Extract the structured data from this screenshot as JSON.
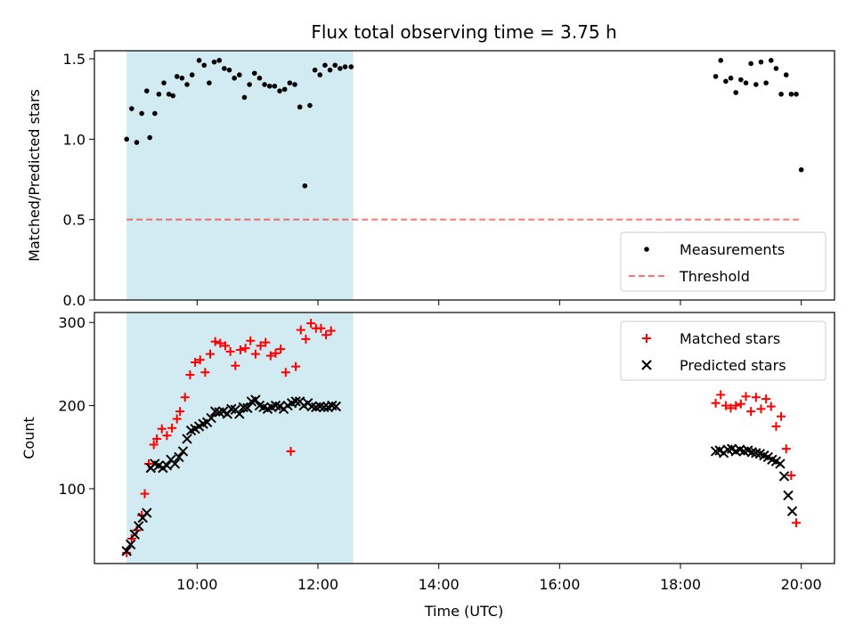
{
  "chart_data": {
    "type": "scatter",
    "title": "Flux total observing time = 3.75 h",
    "xlabel": "Time (UTC)",
    "x_ticks": [
      "10:00",
      "12:00",
      "14:00",
      "16:00",
      "18:00",
      "20:00"
    ],
    "shaded_interval": [
      "08:50",
      "12:35"
    ],
    "colors": {
      "shade": "#add8e6",
      "measurement": "#000000",
      "threshold": "#ff0000",
      "matched": "#ff0000",
      "predicted": "#000000"
    },
    "panels": [
      {
        "ylabel": "Matched/Predicted stars",
        "ylim": [
          0,
          1.55
        ],
        "y_ticks": [
          "0.0",
          "0.5",
          "1.0",
          "1.5"
        ],
        "legend_location": "lower right",
        "legend": [
          {
            "label": "Measurements",
            "marker": "dot"
          },
          {
            "label": "Threshold",
            "marker": "dashed-line"
          }
        ],
        "threshold": {
          "value": 0.5,
          "x_range": [
            "08:50",
            "20:00"
          ]
        },
        "series": [
          {
            "name": "Measurements",
            "points": [
              [
                "08:50",
                1.0
              ],
              [
                "08:55",
                1.19
              ],
              [
                "09:00",
                0.98
              ],
              [
                "09:05",
                1.16
              ],
              [
                "09:10",
                1.3
              ],
              [
                "09:13",
                1.01
              ],
              [
                "09:18",
                1.16
              ],
              [
                "09:22",
                1.28
              ],
              [
                "09:27",
                1.35
              ],
              [
                "09:32",
                1.28
              ],
              [
                "09:36",
                1.27
              ],
              [
                "09:40",
                1.39
              ],
              [
                "09:45",
                1.38
              ],
              [
                "09:50",
                1.34
              ],
              [
                "09:55",
                1.4
              ],
              [
                "10:02",
                1.49
              ],
              [
                "10:07",
                1.46
              ],
              [
                "10:12",
                1.35
              ],
              [
                "10:17",
                1.48
              ],
              [
                "10:22",
                1.49
              ],
              [
                "10:27",
                1.44
              ],
              [
                "10:32",
                1.43
              ],
              [
                "10:37",
                1.38
              ],
              [
                "10:42",
                1.4
              ],
              [
                "10:47",
                1.26
              ],
              [
                "10:52",
                1.34
              ],
              [
                "10:57",
                1.41
              ],
              [
                "11:02",
                1.38
              ],
              [
                "11:07",
                1.34
              ],
              [
                "11:12",
                1.33
              ],
              [
                "11:17",
                1.33
              ],
              [
                "11:22",
                1.3
              ],
              [
                "11:27",
                1.31
              ],
              [
                "11:32",
                1.35
              ],
              [
                "11:37",
                1.34
              ],
              [
                "11:42",
                1.2
              ],
              [
                "11:47",
                0.71
              ],
              [
                "11:52",
                1.21
              ],
              [
                "11:57",
                1.43
              ],
              [
                "12:02",
                1.4
              ],
              [
                "12:07",
                1.46
              ],
              [
                "12:12",
                1.43
              ],
              [
                "12:17",
                1.46
              ],
              [
                "12:22",
                1.44
              ],
              [
                "12:27",
                1.45
              ],
              [
                "12:33",
                1.45
              ],
              [
                "18:35",
                1.39
              ],
              [
                "18:40",
                1.49
              ],
              [
                "18:45",
                1.36
              ],
              [
                "18:50",
                1.38
              ],
              [
                "18:55",
                1.29
              ],
              [
                "19:00",
                1.37
              ],
              [
                "19:05",
                1.35
              ],
              [
                "19:10",
                1.47
              ],
              [
                "19:15",
                1.34
              ],
              [
                "19:20",
                1.48
              ],
              [
                "19:25",
                1.35
              ],
              [
                "19:30",
                1.49
              ],
              [
                "19:35",
                1.44
              ],
              [
                "19:40",
                1.28
              ],
              [
                "19:45",
                1.4
              ],
              [
                "19:50",
                1.28
              ],
              [
                "19:55",
                1.28
              ],
              [
                "20:00",
                0.81
              ]
            ]
          }
        ]
      },
      {
        "ylabel": "Count",
        "ylim": [
          10,
          312
        ],
        "y_ticks": [
          "100",
          "200",
          "300"
        ],
        "legend_location": "upper right",
        "legend": [
          {
            "label": "Matched stars",
            "marker": "plus"
          },
          {
            "label": "Predicted stars",
            "marker": "x"
          }
        ],
        "series": [
          {
            "name": "Matched stars",
            "points": [
              [
                "08:50",
                23
              ],
              [
                "08:55",
                40
              ],
              [
                "09:00",
                50
              ],
              [
                "09:05",
                68
              ],
              [
                "09:08",
                94
              ],
              [
                "09:12",
                130
              ],
              [
                "09:17",
                153
              ],
              [
                "09:20",
                160
              ],
              [
                "09:25",
                172
              ],
              [
                "09:30",
                164
              ],
              [
                "09:35",
                173
              ],
              [
                "09:40",
                184
              ],
              [
                "09:43",
                193
              ],
              [
                "09:48",
                210
              ],
              [
                "09:53",
                237
              ],
              [
                "09:58",
                252
              ],
              [
                "10:03",
                255
              ],
              [
                "10:08",
                240
              ],
              [
                "10:13",
                262
              ],
              [
                "10:18",
                277
              ],
              [
                "10:23",
                275
              ],
              [
                "10:28",
                272
              ],
              [
                "10:33",
                265
              ],
              [
                "10:38",
                248
              ],
              [
                "10:43",
                267
              ],
              [
                "10:48",
                269
              ],
              [
                "10:53",
                278
              ],
              [
                "10:58",
                262
              ],
              [
                "11:03",
                272
              ],
              [
                "11:08",
                276
              ],
              [
                "11:13",
                260
              ],
              [
                "11:18",
                263
              ],
              [
                "11:23",
                268
              ],
              [
                "11:28",
                240
              ],
              [
                "11:33",
                145
              ],
              [
                "11:38",
                247
              ],
              [
                "11:43",
                291
              ],
              [
                "11:48",
                280
              ],
              [
                "11:53",
                299
              ],
              [
                "11:58",
                293
              ],
              [
                "12:03",
                293
              ],
              [
                "12:08",
                285
              ],
              [
                "12:13",
                290
              ],
              [
                "18:35",
                203
              ],
              [
                "18:40",
                213
              ],
              [
                "18:45",
                200
              ],
              [
                "18:50",
                197
              ],
              [
                "18:55",
                200
              ],
              [
                "19:00",
                202
              ],
              [
                "19:05",
                211
              ],
              [
                "19:10",
                193
              ],
              [
                "19:15",
                210
              ],
              [
                "19:20",
                196
              ],
              [
                "19:25",
                208
              ],
              [
                "19:30",
                199
              ],
              [
                "19:35",
                175
              ],
              [
                "19:40",
                187
              ],
              [
                "19:45",
                148
              ],
              [
                "19:50",
                116
              ],
              [
                "19:55",
                59
              ]
            ]
          },
          {
            "name": "Predicted stars",
            "points": [
              [
                "08:50",
                25
              ],
              [
                "08:54",
                33
              ],
              [
                "08:58",
                45
              ],
              [
                "09:02",
                55
              ],
              [
                "09:06",
                65
              ],
              [
                "09:10",
                71
              ],
              [
                "09:14",
                125
              ],
              [
                "09:18",
                130
              ],
              [
                "09:22",
                128
              ],
              [
                "09:26",
                125
              ],
              [
                "09:30",
                128
              ],
              [
                "09:34",
                135
              ],
              [
                "09:38",
                130
              ],
              [
                "09:42",
                138
              ],
              [
                "09:46",
                145
              ],
              [
                "09:50",
                160
              ],
              [
                "09:54",
                170
              ],
              [
                "09:58",
                172
              ],
              [
                "10:02",
                175
              ],
              [
                "10:06",
                178
              ],
              [
                "10:10",
                180
              ],
              [
                "10:14",
                185
              ],
              [
                "10:18",
                193
              ],
              [
                "10:22",
                192
              ],
              [
                "10:26",
                193
              ],
              [
                "10:30",
                190
              ],
              [
                "10:34",
                196
              ],
              [
                "10:38",
                195
              ],
              [
                "10:42",
                190
              ],
              [
                "10:46",
                198
              ],
              [
                "10:50",
                197
              ],
              [
                "10:54",
                205
              ],
              [
                "10:58",
                207
              ],
              [
                "11:02",
                200
              ],
              [
                "11:06",
                198
              ],
              [
                "11:10",
                196
              ],
              [
                "11:14",
                198
              ],
              [
                "11:18",
                200
              ],
              [
                "11:22",
                199
              ],
              [
                "11:26",
                196
              ],
              [
                "11:30",
                200
              ],
              [
                "11:34",
                203
              ],
              [
                "11:38",
                205
              ],
              [
                "11:42",
                205
              ],
              [
                "11:46",
                200
              ],
              [
                "11:50",
                203
              ],
              [
                "11:54",
                199
              ],
              [
                "11:58",
                198
              ],
              [
                "12:02",
                199
              ],
              [
                "12:06",
                198
              ],
              [
                "12:10",
                198
              ],
              [
                "12:14",
                200
              ],
              [
                "12:18",
                199
              ],
              [
                "18:35",
                145
              ],
              [
                "18:39",
                146
              ],
              [
                "18:43",
                143
              ],
              [
                "18:47",
                147
              ],
              [
                "18:51",
                148
              ],
              [
                "18:55",
                145
              ],
              [
                "18:59",
                147
              ],
              [
                "19:03",
                145
              ],
              [
                "19:07",
                146
              ],
              [
                "19:11",
                144
              ],
              [
                "19:15",
                143
              ],
              [
                "19:19",
                142
              ],
              [
                "19:23",
                140
              ],
              [
                "19:27",
                138
              ],
              [
                "19:31",
                135
              ],
              [
                "19:35",
                133
              ],
              [
                "19:39",
                130
              ],
              [
                "19:43",
                115
              ],
              [
                "19:47",
                92
              ],
              [
                "19:51",
                73
              ]
            ]
          }
        ]
      }
    ]
  }
}
